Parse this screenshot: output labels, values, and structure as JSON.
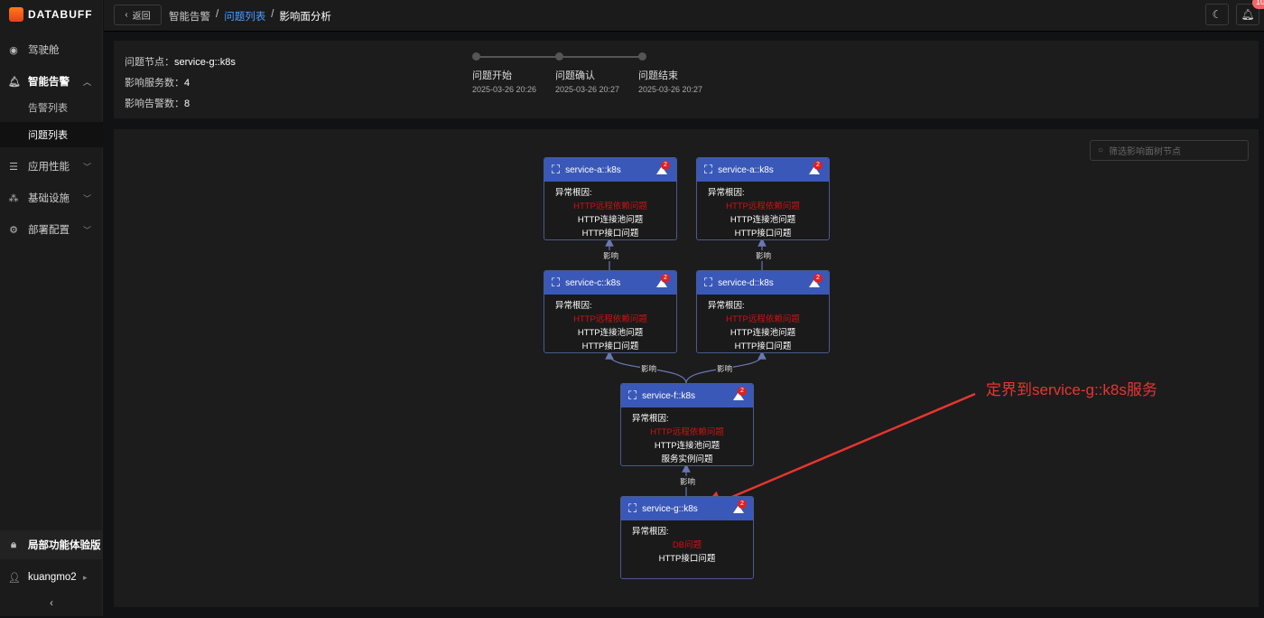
{
  "app": {
    "logo": "DATABUFF"
  },
  "sidebar": {
    "items": [
      {
        "label": "驾驶舱",
        "icon": "dashboard-icon"
      },
      {
        "label": "智能告警",
        "icon": "bell-icon",
        "expanded": true,
        "children": [
          {
            "label": "告警列表"
          },
          {
            "label": "问题列表",
            "active": true
          }
        ]
      },
      {
        "label": "应用性能",
        "icon": "apm-icon"
      },
      {
        "label": "基础设施",
        "icon": "infra-icon"
      },
      {
        "label": "部署配置",
        "icon": "gear-icon"
      }
    ],
    "trial": "局部功能体验版",
    "user": "kuangmo2"
  },
  "header": {
    "back": "返回",
    "breadcrumb": [
      "智能告警",
      "问题列表",
      "影响面分析"
    ],
    "notifications": "10"
  },
  "info": {
    "node_label": "问题节点：",
    "node": "service-g::k8s",
    "services_label": "影响服务数：",
    "services": "4",
    "alerts_label": "影响告警数：",
    "alerts": "8"
  },
  "timeline": [
    {
      "label": "问题开始",
      "time": "2025-03-26 20:26"
    },
    {
      "label": "问题确认",
      "time": "2025-03-26 20:27"
    },
    {
      "label": "问题结束",
      "time": "2025-03-26 20:27"
    }
  ],
  "graph": {
    "search_placeholder": "筛选影响面树节点",
    "cause_label": "异常根因:",
    "edge_label": "影响",
    "nodes": [
      {
        "name": "service-a::k8s",
        "badge": "2",
        "causes": [
          "HTTP远程依赖问题",
          "HTTP连接池问题",
          "HTTP接口问题"
        ]
      },
      {
        "name": "service-a::k8s",
        "badge": "2",
        "causes": [
          "HTTP远程依赖问题",
          "HTTP连接池问题",
          "HTTP接口问题"
        ]
      },
      {
        "name": "service-c::k8s",
        "badge": "2",
        "causes": [
          "HTTP远程依赖问题",
          "HTTP连接池问题",
          "HTTP接口问题"
        ]
      },
      {
        "name": "service-d::k8s",
        "badge": "2",
        "causes": [
          "HTTP远程依赖问题",
          "HTTP连接池问题",
          "HTTP接口问题"
        ]
      },
      {
        "name": "service-f::k8s",
        "badge": "2",
        "causes": [
          "HTTP远程依赖问题",
          "HTTP连接池问题",
          "服务实例问题"
        ]
      },
      {
        "name": "service-g::k8s",
        "badge": "2",
        "causes": [
          "DB问题",
          "HTTP接口问题"
        ]
      }
    ],
    "highlight_color": "#d11111",
    "header_color": "#3a58b8"
  },
  "annotation": "定界到service-g::k8s服务"
}
